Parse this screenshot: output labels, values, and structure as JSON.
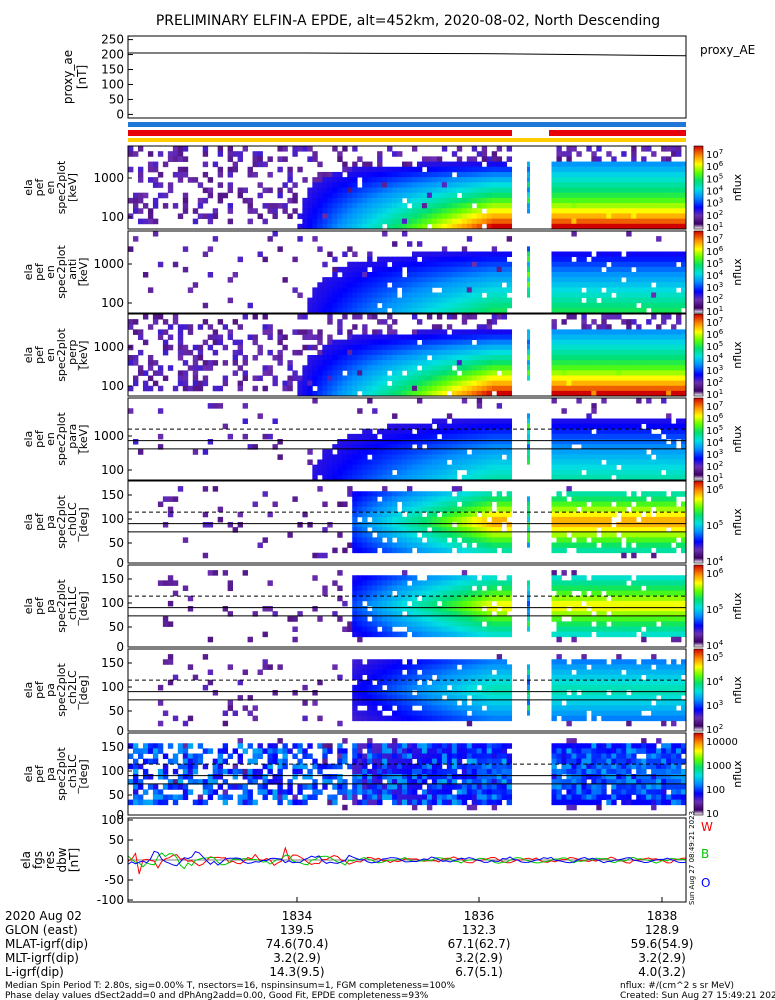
{
  "title": "PRELIMINARY ELFIN-A EPDE, alt=452km, 2020-08-02, North Descending",
  "chart_data": [
    {
      "type": "line",
      "ylabel": [
        "proxy_ae",
        "[nT]"
      ],
      "legend": "proxy_AE",
      "yticks": [
        "250",
        "200",
        "150",
        "100",
        "50",
        "0"
      ],
      "x": [
        1832.0,
        1833.0,
        1834.0,
        1835.0,
        1836.0,
        1837.0,
        1838.0,
        1838.3
      ],
      "values": [
        205,
        205,
        205,
        204,
        203,
        200,
        197,
        196
      ]
    },
    {
      "type": "heatmap",
      "ylabel": [
        "ela",
        "pef",
        "en",
        "spec2plot",
        "[keV]"
      ],
      "yticks": [
        "1000",
        "100"
      ],
      "cbticks": [
        "10^7",
        "10^6",
        "10^5",
        "10^4",
        "10^3",
        "10^2",
        "10^1"
      ],
      "cblabel": "nflux"
    },
    {
      "type": "heatmap",
      "ylabel": [
        "ela",
        "pef",
        "en",
        "spec2plot",
        "_anti",
        "[keV]"
      ],
      "yticks": [
        "1000",
        "100"
      ],
      "cbticks": [
        "10^7",
        "10^6",
        "10^5",
        "10^4",
        "10^3",
        "10^2",
        "10^1"
      ],
      "cblabel": "nflux"
    },
    {
      "type": "heatmap",
      "ylabel": [
        "ela",
        "pef",
        "en",
        "spec2plot",
        "_perp",
        "[keV]"
      ],
      "yticks": [
        "1000",
        "100"
      ],
      "cbticks": [
        "10^7",
        "10^6",
        "10^5",
        "10^4",
        "10^3",
        "10^2",
        "10^1"
      ],
      "cblabel": "nflux"
    },
    {
      "type": "heatmap",
      "ylabel": [
        "ela",
        "pef",
        "en",
        "spec2plot",
        "_para",
        "[keV]"
      ],
      "yticks": [
        "1000",
        "100"
      ],
      "cbticks": [
        "10^7",
        "10^6",
        "10^5",
        "10^4",
        "10^3",
        "10^2",
        "10^1"
      ],
      "cblabel": "nflux"
    },
    {
      "type": "heatmap",
      "ylabel": [
        "ela",
        "pef",
        "pa",
        "spec2plot",
        "_ch0LC",
        "[deg]"
      ],
      "yticks": [
        "150",
        "100",
        "50",
        "0"
      ],
      "cbticks": [
        "10^6",
        "10^5",
        "10^4"
      ],
      "cblabel": "nflux"
    },
    {
      "type": "heatmap",
      "ylabel": [
        "ela",
        "pef",
        "pa",
        "spec2plot",
        "_ch1LC",
        "[deg]"
      ],
      "yticks": [
        "150",
        "100",
        "50",
        "0"
      ],
      "cbticks": [
        "10^6",
        "10^5",
        "10^4"
      ],
      "cblabel": "nflux"
    },
    {
      "type": "heatmap",
      "ylabel": [
        "ela",
        "pef",
        "pa",
        "spec2plot",
        "_ch2LC",
        "[deg]"
      ],
      "yticks": [
        "150",
        "100",
        "50",
        "0"
      ],
      "cbticks": [
        "10^5",
        "10^4",
        "10^3",
        "10^2"
      ],
      "cblabel": "nflux"
    },
    {
      "type": "heatmap",
      "ylabel": [
        "ela",
        "pef",
        "pa",
        "spec2plot",
        "_ch3LC",
        "[deg]"
      ],
      "yticks": [
        "150",
        "100",
        "50",
        "0"
      ],
      "cbticks": [
        "10000",
        "1000",
        "100",
        "10"
      ],
      "cblabel": "nflux"
    },
    {
      "type": "line",
      "ylabel": [
        "ela",
        "fgs",
        "res",
        "dbw",
        "[nT]"
      ],
      "yticks": [
        "100",
        "50",
        "0",
        "-50",
        "-100"
      ],
      "series": [
        {
          "name": "W",
          "color": "#ff0000"
        },
        {
          "name": "B",
          "color": "#00c800"
        },
        {
          "name": "O",
          "color": "#0000ff"
        }
      ]
    }
  ],
  "stamp": "Sun Aug 27 08:49:21 2023",
  "xaxis": {
    "rows": [
      {
        "label": "2020 Aug 02",
        "v1": "1834",
        "v2": "1836",
        "v3": "1838"
      },
      {
        "label": "GLON (east)",
        "v1": "139.5",
        "v2": "132.3",
        "v3": "128.9"
      },
      {
        "label": "MLAT-igrf(dip)",
        "v1": "74.6(70.4)",
        "v2": "67.1(62.7)",
        "v3": "59.6(54.9)"
      },
      {
        "label": "MLT-igrf(dip)",
        "v1": "3.2(2.9)",
        "v2": "3.2(2.9)",
        "v3": "3.2(2.9)"
      },
      {
        "label": "L-igrf(dip)",
        "v1": "14.3(9.5)",
        "v2": "6.7(5.1)",
        "v3": "4.0(3.2)"
      }
    ]
  },
  "footer": {
    "line1": "Median Spin Period T: 2.80s, sig=0.00% T, nsectors=16, nspinsinsum=1, FGM completeness=100%",
    "line2": "Phase delay values dSect2add=0 and dPhAng2add=0.00, Good Fit, EPDE completeness=93%",
    "right1": "nflux: #/(cm^2 s sr MeV)",
    "right2": "Created: Sun Aug 27 15:49:21 2023"
  }
}
